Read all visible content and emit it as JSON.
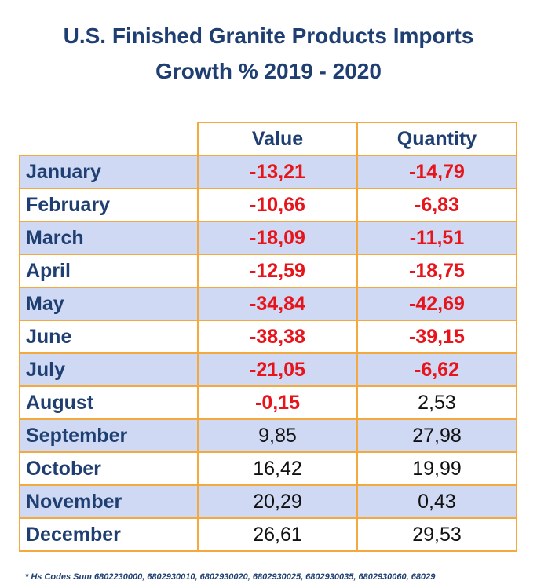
{
  "chart_data": {
    "type": "table",
    "title": "U.S. Finished Granite Products Imports",
    "subtitle": "Growth % 2019 - 2020",
    "columns": [
      "Value",
      "Quantity"
    ],
    "rows": [
      {
        "month": "January",
        "value": "-13,21",
        "quantity": "-14,79"
      },
      {
        "month": "February",
        "value": "-10,66",
        "quantity": "-6,83"
      },
      {
        "month": "March",
        "value": "-18,09",
        "quantity": "-11,51"
      },
      {
        "month": "April",
        "value": "-12,59",
        "quantity": "-18,75"
      },
      {
        "month": "May",
        "value": "-34,84",
        "quantity": "-42,69"
      },
      {
        "month": "June",
        "value": "-38,38",
        "quantity": "-39,15"
      },
      {
        "month": "July",
        "value": "-21,05",
        "quantity": "-6,62"
      },
      {
        "month": "August",
        "value": "-0,15",
        "quantity": "2,53"
      },
      {
        "month": "September",
        "value": "9,85",
        "quantity": "27,98"
      },
      {
        "month": "October",
        "value": "16,42",
        "quantity": "19,99"
      },
      {
        "month": "November",
        "value": "20,29",
        "quantity": "0,43"
      },
      {
        "month": "December",
        "value": "26,61",
        "quantity": "29,53"
      }
    ],
    "footnote": "* Hs Codes Sum 6802230000, 6802930010, 6802930020, 6802930025, 6802930035, 6802930060, 68029",
    "colors": {
      "title": "#1f3f72",
      "negative": "#e8141b",
      "positive": "#111111",
      "row_shade": "#cfd9f3",
      "border": "#f3a93d"
    }
  }
}
